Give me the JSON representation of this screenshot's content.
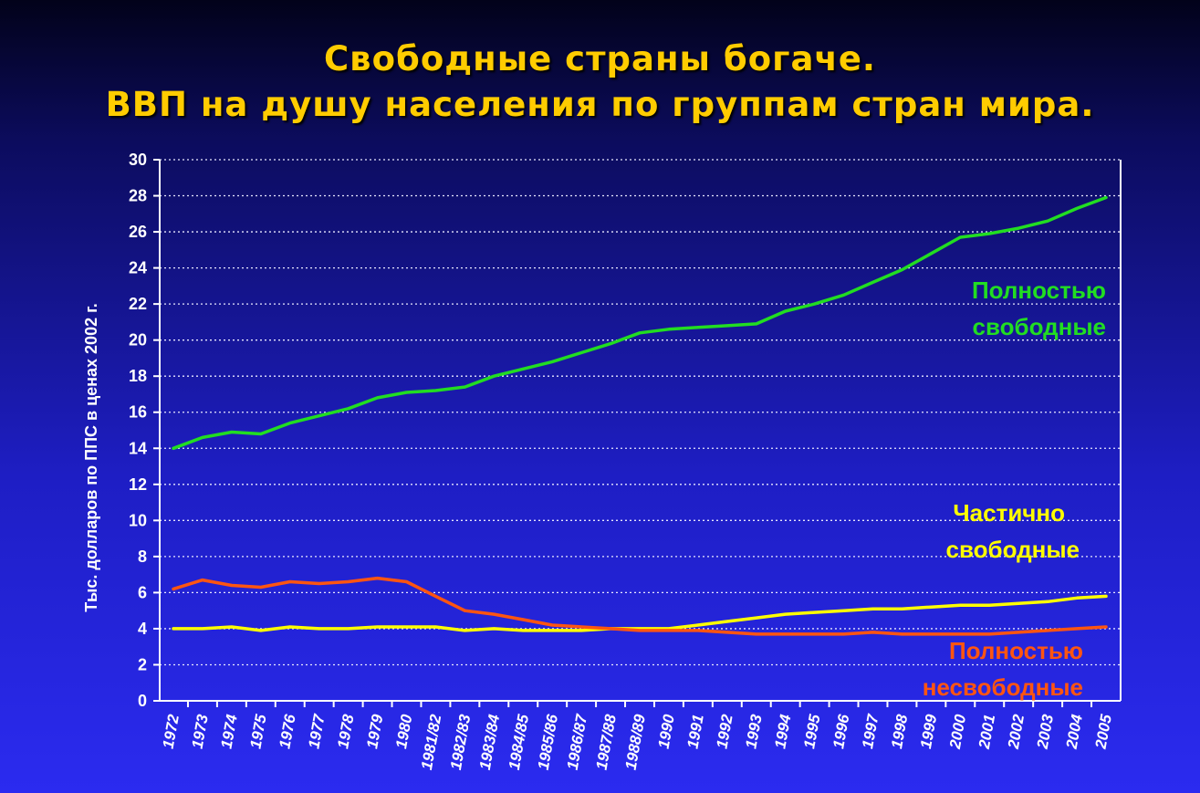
{
  "header": {
    "title_line1": "Свободные страны богаче.",
    "title_line2": "ВВП на душу населения по группам стран мира."
  },
  "chart_data": {
    "type": "line",
    "ylabel": "Тыс. долларов по ППС в ценах 2002 г.",
    "ylim": [
      0,
      30
    ],
    "yticks": [
      0,
      2,
      4,
      6,
      8,
      10,
      12,
      14,
      16,
      18,
      20,
      22,
      24,
      26,
      28,
      30
    ],
    "grid": true,
    "categories": [
      "1972",
      "1973",
      "1974",
      "1975",
      "1976",
      "1977",
      "1978",
      "1979",
      "1980",
      "1981/82",
      "1982/83",
      "1983/84",
      "1984/85",
      "1985/86",
      "1986/87",
      "1987/88",
      "1988/89",
      "1990",
      "1991",
      "1992",
      "1993",
      "1994",
      "1995",
      "1996",
      "1997",
      "1998",
      "1999",
      "2000",
      "2001",
      "2002",
      "2003",
      "2004",
      "2005"
    ],
    "series": [
      {
        "name": "Полностью свободные",
        "name_line1": "Полностью",
        "name_line2": "свободные",
        "color": "#22dd22",
        "values": [
          14.0,
          14.6,
          14.9,
          14.8,
          15.4,
          15.8,
          16.2,
          16.8,
          17.1,
          17.2,
          17.4,
          18.0,
          18.4,
          18.8,
          19.3,
          19.8,
          20.4,
          20.6,
          20.7,
          20.8,
          20.9,
          21.6,
          22.0,
          22.5,
          23.2,
          23.9,
          24.8,
          25.7,
          25.9,
          26.2,
          26.6,
          27.3,
          27.9
        ]
      },
      {
        "name": "Частично свободные",
        "name_line1": "Частично",
        "name_line2": "свободные",
        "color": "#ffff00",
        "values": [
          4.0,
          4.0,
          4.1,
          3.9,
          4.1,
          4.0,
          4.0,
          4.1,
          4.1,
          4.1,
          3.9,
          4.0,
          3.9,
          3.9,
          3.9,
          4.0,
          4.0,
          4.0,
          4.2,
          4.4,
          4.6,
          4.8,
          4.9,
          5.0,
          5.1,
          5.1,
          5.2,
          5.3,
          5.3,
          5.4,
          5.5,
          5.7,
          5.8
        ]
      },
      {
        "name": "Полностью несвободные",
        "name_line1": "Полностью",
        "name_line2": "несвободные",
        "color": "#ff5511",
        "values": [
          6.2,
          6.7,
          6.4,
          6.3,
          6.6,
          6.5,
          6.6,
          6.8,
          6.6,
          5.8,
          5.0,
          4.8,
          4.5,
          4.2,
          4.1,
          4.0,
          3.9,
          3.9,
          3.9,
          3.8,
          3.7,
          3.7,
          3.7,
          3.7,
          3.8,
          3.7,
          3.7,
          3.7,
          3.7,
          3.8,
          3.9,
          4.0,
          4.1
        ]
      }
    ]
  }
}
